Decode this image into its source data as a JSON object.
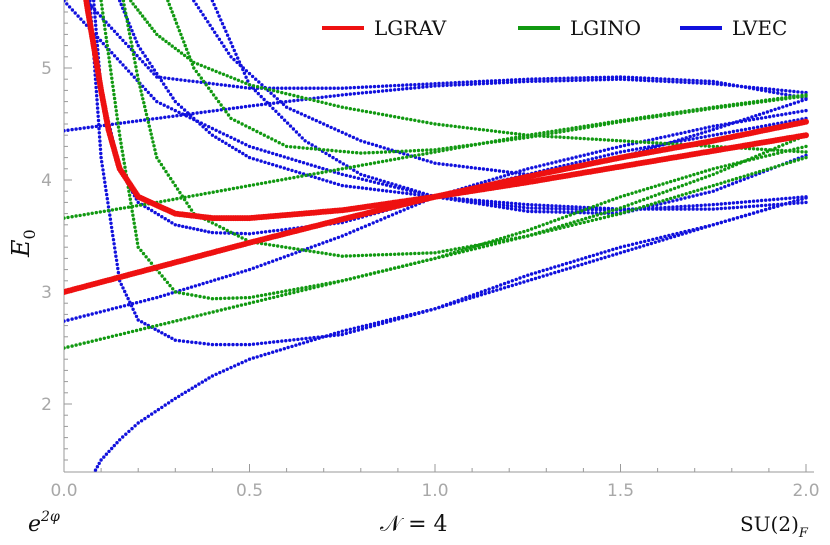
{
  "chart_data": {
    "type": "scatter",
    "x_tick_labels": [
      "0.0",
      "0.5",
      "1.0",
      "1.5",
      "2.0"
    ],
    "y_tick_labels": [
      "2",
      "3",
      "4",
      "5"
    ],
    "x_ticks": [
      0,
      0.5,
      1.0,
      1.5,
      2.0
    ],
    "y_ticks": [
      2,
      3,
      4,
      5
    ],
    "xlim": [
      0,
      2.05
    ],
    "ylim": [
      1.4,
      5.6
    ],
    "ylabel": "E",
    "ylabel_sub": "0",
    "xlabel_left": "e",
    "xlabel_left_sup": "2φ",
    "xlabel_center": "𝒩 = 4",
    "xlabel_right": "SU(2)",
    "xlabel_right_sub": "F",
    "legend_position": "top-right",
    "colors": {
      "LGRAV": "#ee1111",
      "LGINO": "#119911",
      "LVEC": "#1111dd"
    },
    "series": [
      {
        "name": "LGRAV",
        "color": "#ee1111",
        "curves": [
          {
            "x": [
              0,
              0.25,
              0.5,
              0.75,
              1.0,
              1.25,
              1.5,
              1.75,
              2.0
            ],
            "y": [
              3.0,
              3.22,
              3.44,
              3.65,
              3.85,
              4.03,
              4.2,
              4.35,
              4.52
            ]
          },
          {
            "x": [
              0.06,
              0.08,
              0.1,
              0.12,
              0.15,
              0.2,
              0.3,
              0.4,
              0.5,
              0.75,
              1.0,
              1.25,
              1.5,
              1.75,
              2.0
            ],
            "y": [
              5.6,
              5.2,
              4.8,
              4.45,
              4.1,
              3.85,
              3.7,
              3.66,
              3.66,
              3.73,
              3.85,
              3.98,
              4.12,
              4.26,
              4.4
            ]
          }
        ]
      },
      {
        "name": "LGINO",
        "color": "#119911",
        "curves": [
          {
            "x": [
              0,
              0.25,
              0.5,
              0.75,
              1.0,
              1.25,
              1.5,
              1.75,
              2.0
            ],
            "y": [
              2.5,
              2.7,
              2.9,
              3.1,
              3.3,
              3.5,
              3.7,
              3.95,
              4.2
            ]
          },
          {
            "x": [
              0,
              0.25,
              0.5,
              0.75,
              1.0,
              1.25,
              1.5,
              1.75,
              2.0
            ],
            "y": [
              3.66,
              3.8,
              3.95,
              4.1,
              4.25,
              4.4,
              4.53,
              4.65,
              4.76
            ]
          },
          {
            "x": [
              0.1,
              0.15,
              0.2,
              0.3,
              0.4,
              0.5,
              0.75,
              1.0,
              1.25,
              1.5,
              1.75,
              2.0
            ],
            "y": [
              5.6,
              4.4,
              3.4,
              3.0,
              2.94,
              2.95,
              3.1,
              3.3,
              3.55,
              3.85,
              4.1,
              4.3
            ]
          },
          {
            "x": [
              0.16,
              0.2,
              0.25,
              0.35,
              0.5,
              0.75,
              1.0,
              1.25,
              1.5,
              1.75,
              2.0
            ],
            "y": [
              5.6,
              4.9,
              4.2,
              3.7,
              3.45,
              3.32,
              3.35,
              3.5,
              3.75,
              4.05,
              4.4
            ]
          },
          {
            "x": [
              0.28,
              0.35,
              0.45,
              0.6,
              0.8,
              1.0,
              1.25,
              1.5,
              1.75,
              2.0
            ],
            "y": [
              5.6,
              5.0,
              4.55,
              4.3,
              4.24,
              4.27,
              4.38,
              4.52,
              4.64,
              4.75
            ]
          },
          {
            "x": [
              0.18,
              0.25,
              0.35,
              0.5,
              0.75,
              1.0,
              1.25,
              1.5,
              1.75,
              2.0
            ],
            "y": [
              5.6,
              5.3,
              5.05,
              4.85,
              4.65,
              4.5,
              4.4,
              4.35,
              4.3,
              4.25
            ]
          }
        ]
      },
      {
        "name": "LVEC",
        "color": "#1111dd",
        "curves": [
          {
            "x": [
              0,
              0.25,
              0.5,
              0.75,
              1.0,
              1.25,
              1.5,
              1.75,
              2.0
            ],
            "y": [
              4.44,
              4.55,
              4.66,
              4.76,
              4.84,
              4.88,
              4.9,
              4.86,
              4.78
            ]
          },
          {
            "x": [
              0.06,
              0.25,
              0.5,
              0.75,
              1.0,
              1.25,
              1.5,
              1.75,
              2.0
            ],
            "y": [
              5.6,
              4.92,
              4.82,
              4.82,
              4.86,
              4.9,
              4.92,
              4.88,
              4.73
            ]
          },
          {
            "x": [
              0,
              0.25,
              0.5,
              0.75,
              1.0,
              1.25,
              1.5,
              1.75,
              2.0
            ],
            "y": [
              2.74,
              2.95,
              3.2,
              3.5,
              3.85,
              4.05,
              4.25,
              4.4,
              4.55
            ]
          },
          {
            "x": [
              0.07,
              0.1,
              0.15,
              0.2,
              0.3,
              0.4,
              0.5,
              0.75,
              1.0,
              1.25,
              1.5,
              1.75,
              2.0
            ],
            "y": [
              5.6,
              4.2,
              3.1,
              2.75,
              2.57,
              2.53,
              2.53,
              2.62,
              2.85,
              3.1,
              3.35,
              3.6,
              3.84
            ]
          },
          {
            "x": [
              0.07,
              0.1,
              0.15,
              0.2,
              0.3,
              0.4,
              0.5,
              0.75,
              1.0,
              1.25,
              1.5,
              1.75,
              2.0
            ],
            "y": [
              1.32,
              1.5,
              1.68,
              1.83,
              2.05,
              2.25,
              2.4,
              2.65,
              2.85,
              3.15,
              3.4,
              3.6,
              3.84
            ]
          },
          {
            "x": [
              0.08,
              0.1,
              0.15,
              0.2,
              0.3,
              0.4,
              0.5,
              0.75,
              1.0,
              1.25,
              1.5,
              1.75,
              2.0
            ],
            "y": [
              5.6,
              4.8,
              4.1,
              3.8,
              3.6,
              3.53,
              3.52,
              3.62,
              3.85,
              4.1,
              4.3,
              4.48,
              4.62
            ]
          },
          {
            "x": [
              0.15,
              0.2,
              0.3,
              0.4,
              0.5,
              0.75,
              1.0,
              1.25,
              1.5,
              1.75,
              2.0
            ],
            "y": [
              5.6,
              5.2,
              4.7,
              4.4,
              4.2,
              3.95,
              3.85,
              3.78,
              3.74,
              3.74,
              3.8
            ]
          },
          {
            "x": [
              0.35,
              0.45,
              0.6,
              0.8,
              1.0,
              1.25,
              1.5,
              1.75,
              2.0
            ],
            "y": [
              5.6,
              5.1,
              4.65,
              4.35,
              4.15,
              4.05,
              4.2,
              4.45,
              4.72
            ]
          },
          {
            "x": [
              0.4,
              0.5,
              0.65,
              0.8,
              1.0,
              1.25,
              1.5,
              1.75,
              2.0
            ],
            "y": [
              5.6,
              4.85,
              4.35,
              4.05,
              3.85,
              3.75,
              3.73,
              3.78,
              3.85
            ]
          },
          {
            "x": [
              0,
              0.25,
              0.5,
              0.75,
              1.0,
              1.25,
              1.5,
              1.75,
              2.0
            ],
            "y": [
              5.6,
              4.7,
              4.3,
              4.05,
              3.85,
              3.72,
              3.7,
              3.9,
              4.22
            ]
          }
        ]
      }
    ]
  }
}
